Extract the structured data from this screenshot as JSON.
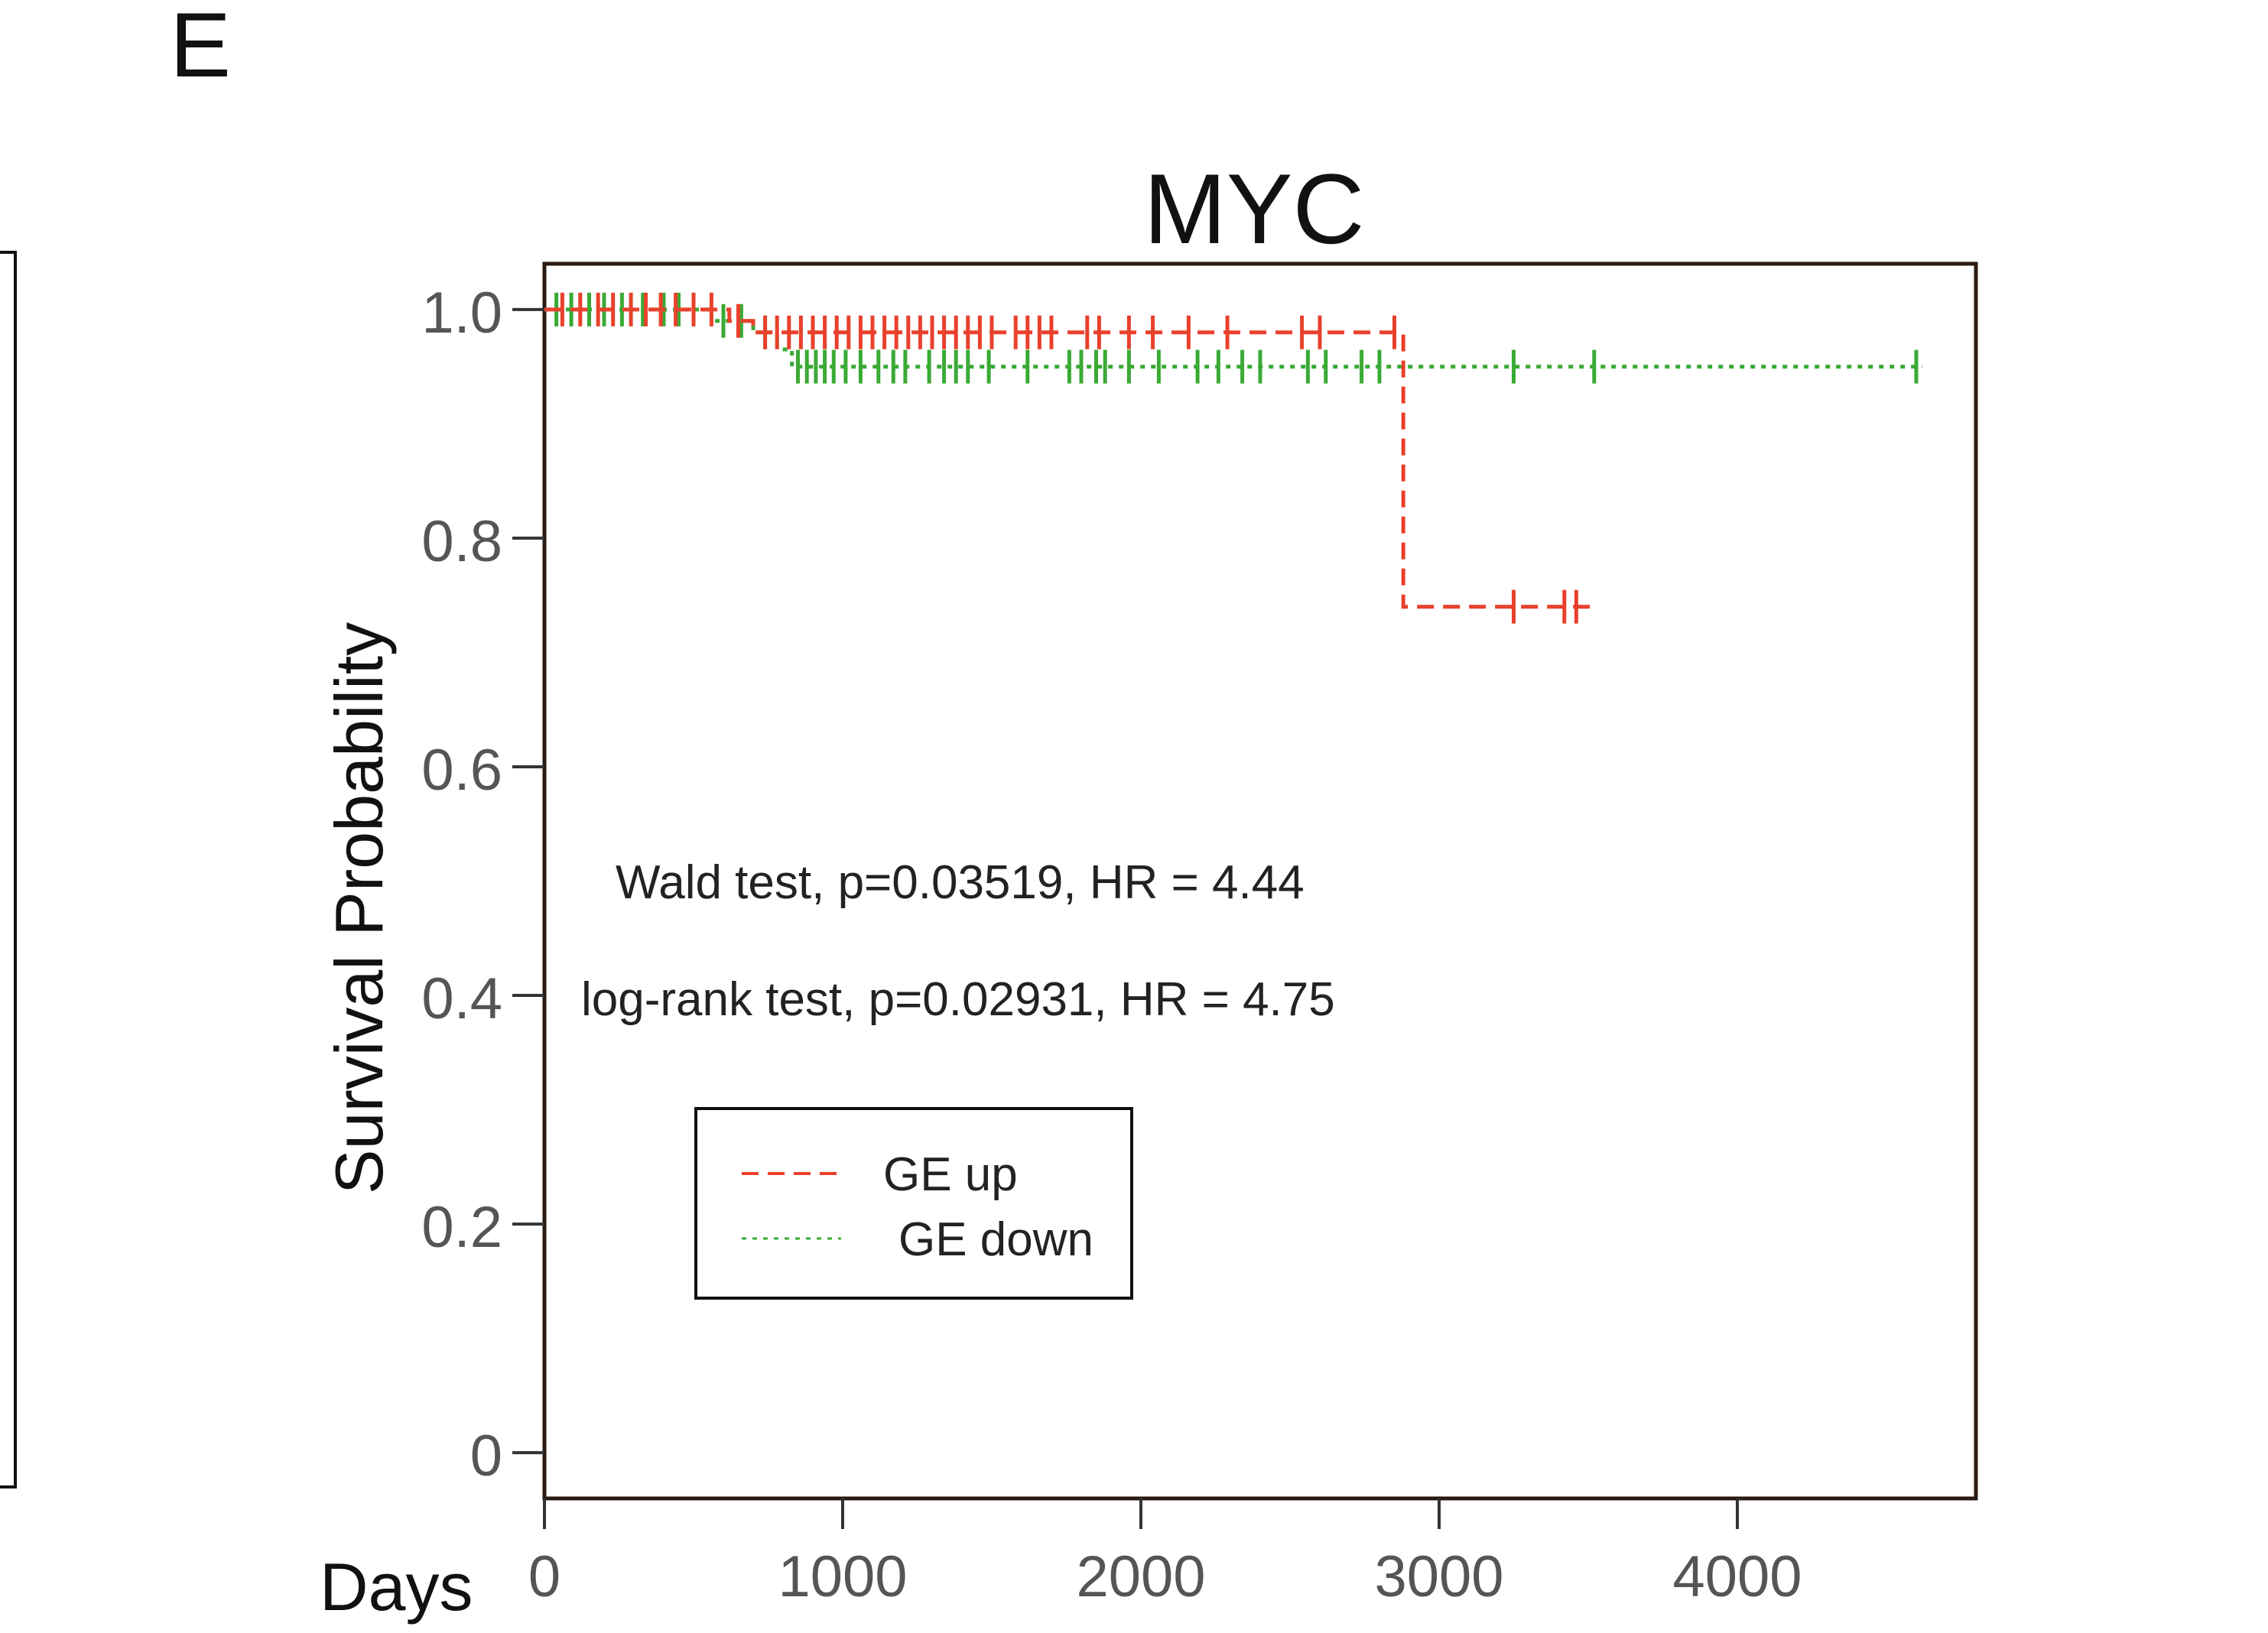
{
  "panel_label": "E",
  "chart_data": {
    "type": "line",
    "subtype": "kaplan-meier",
    "title": "MYC",
    "xlabel": "Days",
    "ylabel": "Survival Probability",
    "xlim": [
      0,
      4800
    ],
    "ylim": [
      -0.04,
      1.04
    ],
    "x_ticks": [
      0,
      1000,
      2000,
      3000,
      4000
    ],
    "x_tick_labels": [
      "0",
      "1000",
      "2000",
      "3000",
      "4000"
    ],
    "y_ticks": [
      0,
      0.2,
      0.4,
      0.6,
      0.8,
      1.0
    ],
    "y_tick_labels": [
      "0",
      "0.2",
      "0.4",
      "0.6",
      "0.8",
      "1.0"
    ],
    "grid": false,
    "legend_position": "center-left",
    "annotations": [
      "Wald test, p=0.03519, HR = 4.44",
      "log-rank test, p=0.02931, HR = 4.75"
    ],
    "series": [
      {
        "name": "GE up",
        "color": "#e8412c",
        "line_style": "dashed",
        "steps": [
          {
            "x": 0,
            "y": 1.0
          },
          {
            "x": 620,
            "y": 0.99
          },
          {
            "x": 700,
            "y": 0.98
          },
          {
            "x": 2880,
            "y": 0.98
          },
          {
            "x": 2880,
            "y": 0.74
          }
        ],
        "end_x": 3520,
        "censor_points": [
          {
            "x": 60,
            "y": 1.0
          },
          {
            "x": 120,
            "y": 1.0
          },
          {
            "x": 180,
            "y": 1.0
          },
          {
            "x": 230,
            "y": 1.0
          },
          {
            "x": 290,
            "y": 1.0
          },
          {
            "x": 340,
            "y": 1.0
          },
          {
            "x": 390,
            "y": 1.0
          },
          {
            "x": 440,
            "y": 1.0
          },
          {
            "x": 500,
            "y": 1.0
          },
          {
            "x": 560,
            "y": 1.0
          },
          {
            "x": 650,
            "y": 0.99
          },
          {
            "x": 740,
            "y": 0.98
          },
          {
            "x": 780,
            "y": 0.98
          },
          {
            "x": 820,
            "y": 0.98
          },
          {
            "x": 860,
            "y": 0.98
          },
          {
            "x": 900,
            "y": 0.98
          },
          {
            "x": 940,
            "y": 0.98
          },
          {
            "x": 980,
            "y": 0.98
          },
          {
            "x": 1020,
            "y": 0.98
          },
          {
            "x": 1060,
            "y": 0.98
          },
          {
            "x": 1100,
            "y": 0.98
          },
          {
            "x": 1140,
            "y": 0.98
          },
          {
            "x": 1180,
            "y": 0.98
          },
          {
            "x": 1220,
            "y": 0.98
          },
          {
            "x": 1260,
            "y": 0.98
          },
          {
            "x": 1300,
            "y": 0.98
          },
          {
            "x": 1340,
            "y": 0.98
          },
          {
            "x": 1380,
            "y": 0.98
          },
          {
            "x": 1420,
            "y": 0.98
          },
          {
            "x": 1460,
            "y": 0.98
          },
          {
            "x": 1500,
            "y": 0.98
          },
          {
            "x": 1580,
            "y": 0.98
          },
          {
            "x": 1620,
            "y": 0.98
          },
          {
            "x": 1660,
            "y": 0.98
          },
          {
            "x": 1700,
            "y": 0.98
          },
          {
            "x": 1820,
            "y": 0.98
          },
          {
            "x": 1860,
            "y": 0.98
          },
          {
            "x": 1960,
            "y": 0.98
          },
          {
            "x": 2040,
            "y": 0.98
          },
          {
            "x": 2160,
            "y": 0.98
          },
          {
            "x": 2290,
            "y": 0.98
          },
          {
            "x": 2540,
            "y": 0.98
          },
          {
            "x": 2600,
            "y": 0.98
          },
          {
            "x": 2850,
            "y": 0.98
          },
          {
            "x": 3250,
            "y": 0.74
          },
          {
            "x": 3420,
            "y": 0.74
          },
          {
            "x": 3460,
            "y": 0.74
          }
        ]
      },
      {
        "name": "GE down",
        "color": "#3aaa35",
        "line_style": "dotted",
        "steps": [
          {
            "x": 0,
            "y": 1.0
          },
          {
            "x": 560,
            "y": 0.99
          },
          {
            "x": 700,
            "y": 0.98
          },
          {
            "x": 780,
            "y": 0.965
          },
          {
            "x": 830,
            "y": 0.95
          }
        ],
        "end_x": 4620,
        "censor_points": [
          {
            "x": 40,
            "y": 1.0
          },
          {
            "x": 90,
            "y": 1.0
          },
          {
            "x": 150,
            "y": 1.0
          },
          {
            "x": 200,
            "y": 1.0
          },
          {
            "x": 260,
            "y": 1.0
          },
          {
            "x": 330,
            "y": 1.0
          },
          {
            "x": 400,
            "y": 1.0
          },
          {
            "x": 450,
            "y": 1.0
          },
          {
            "x": 500,
            "y": 1.0
          },
          {
            "x": 600,
            "y": 0.99
          },
          {
            "x": 660,
            "y": 0.99
          },
          {
            "x": 740,
            "y": 0.98
          },
          {
            "x": 850,
            "y": 0.95
          },
          {
            "x": 880,
            "y": 0.95
          },
          {
            "x": 910,
            "y": 0.95
          },
          {
            "x": 940,
            "y": 0.95
          },
          {
            "x": 970,
            "y": 0.95
          },
          {
            "x": 1010,
            "y": 0.95
          },
          {
            "x": 1060,
            "y": 0.95
          },
          {
            "x": 1120,
            "y": 0.95
          },
          {
            "x": 1170,
            "y": 0.95
          },
          {
            "x": 1210,
            "y": 0.95
          },
          {
            "x": 1290,
            "y": 0.95
          },
          {
            "x": 1340,
            "y": 0.95
          },
          {
            "x": 1380,
            "y": 0.95
          },
          {
            "x": 1420,
            "y": 0.95
          },
          {
            "x": 1490,
            "y": 0.95
          },
          {
            "x": 1620,
            "y": 0.95
          },
          {
            "x": 1760,
            "y": 0.95
          },
          {
            "x": 1800,
            "y": 0.95
          },
          {
            "x": 1850,
            "y": 0.95
          },
          {
            "x": 1880,
            "y": 0.95
          },
          {
            "x": 1960,
            "y": 0.95
          },
          {
            "x": 2060,
            "y": 0.95
          },
          {
            "x": 2190,
            "y": 0.95
          },
          {
            "x": 2260,
            "y": 0.95
          },
          {
            "x": 2340,
            "y": 0.95
          },
          {
            "x": 2400,
            "y": 0.95
          },
          {
            "x": 2560,
            "y": 0.95
          },
          {
            "x": 2620,
            "y": 0.95
          },
          {
            "x": 2740,
            "y": 0.95
          },
          {
            "x": 2800,
            "y": 0.95
          },
          {
            "x": 3250,
            "y": 0.95
          },
          {
            "x": 3520,
            "y": 0.95
          },
          {
            "x": 4600,
            "y": 0.95
          }
        ]
      }
    ]
  }
}
